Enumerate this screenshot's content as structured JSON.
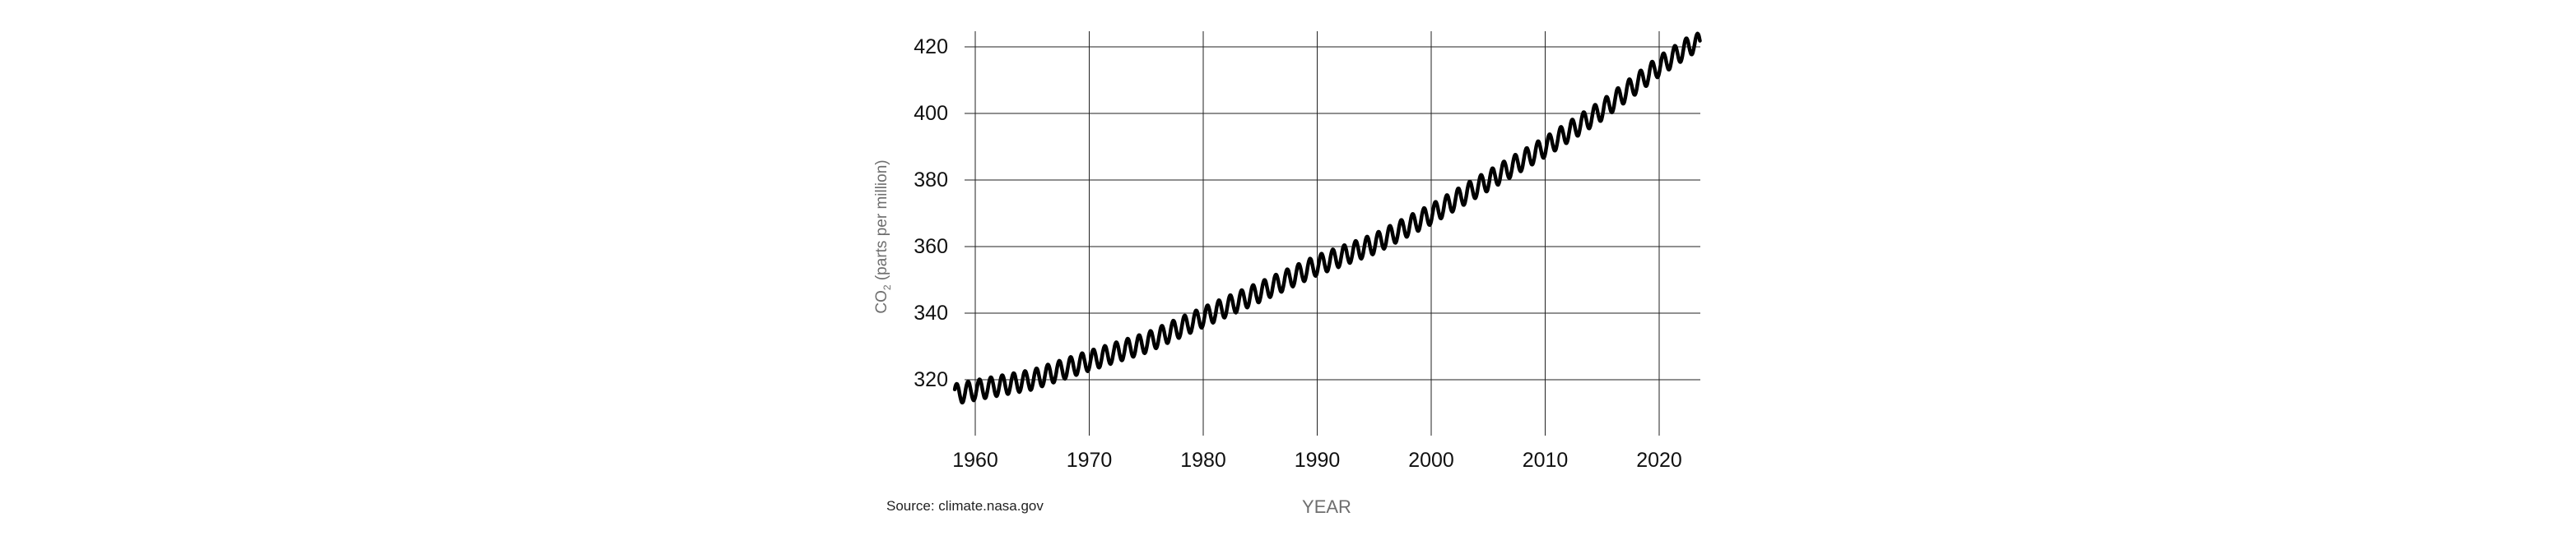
{
  "chart_data": {
    "type": "line",
    "title": "",
    "xlabel": "YEAR",
    "ylabel": {
      "main": "CO",
      "subscript": "2",
      "rest": " (parts per million)"
    },
    "xlim": [
      1958,
      2023.6
    ],
    "ylim": [
      306,
      424
    ],
    "x_ticks": [
      1960,
      1970,
      1980,
      1990,
      2000,
      2010,
      2020
    ],
    "y_ticks": [
      320,
      340,
      360,
      380,
      400,
      420
    ],
    "grid": true,
    "legend": "none",
    "series": [
      {
        "line_color": "#000000",
        "seasonal_amplitude_ppm": 3.0,
        "x": [
          1958,
          1960,
          1965,
          1970,
          1975,
          1980,
          1985,
          1990,
          1995,
          2000,
          2005,
          2010,
          2015,
          2020,
          2023
        ],
        "y": [
          315.5,
          316.9,
          320.0,
          325.7,
          331.1,
          338.8,
          346.4,
          354.4,
          360.8,
          369.7,
          379.8,
          389.9,
          401.0,
          414.2,
          421.0
        ]
      }
    ]
  },
  "source_note": "Source: climate.nasa.gov"
}
